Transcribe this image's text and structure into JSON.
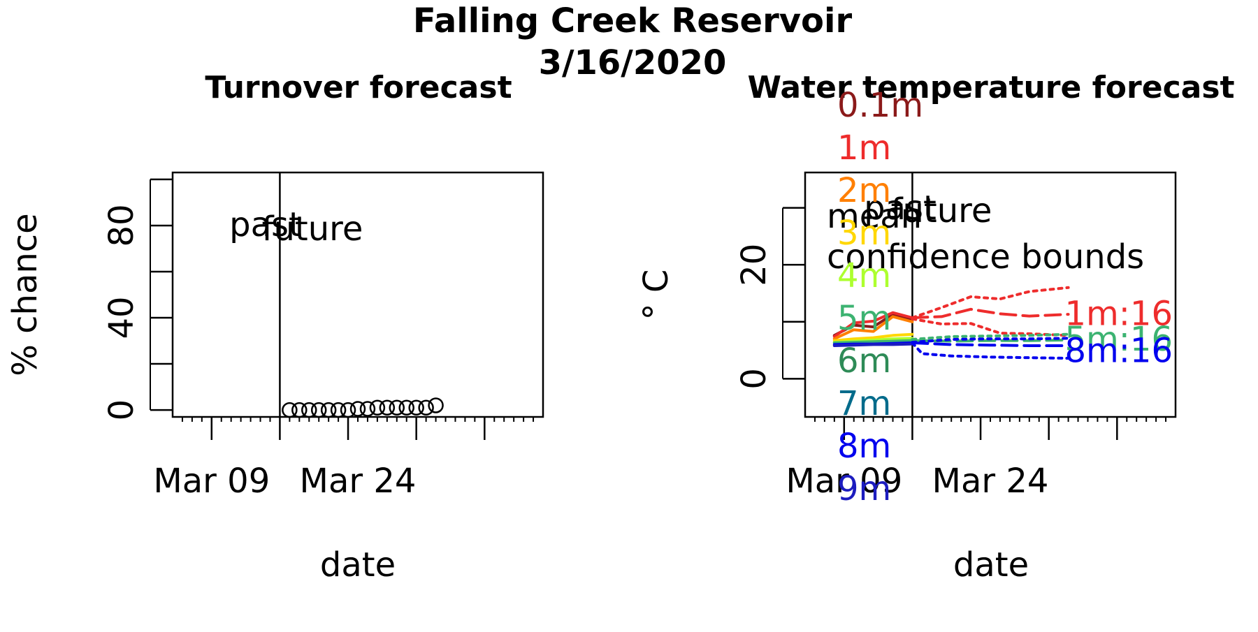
{
  "figure": {
    "title_line1": "Falling Creek Reservoir",
    "title_line2": "3/16/2020"
  },
  "chart_data": [
    {
      "type": "scatter",
      "title": "Turnover forecast",
      "xlabel": "date",
      "ylabel": "% chance",
      "x_tick_labels": [
        "Mar 09",
        "Mar 24"
      ],
      "y_tick_labels": [
        "0",
        "40",
        "80"
      ],
      "y_ticks_all": [
        0,
        20,
        40,
        60,
        80,
        100
      ],
      "xlim": [
        "2020-03-05",
        "2020-04-12"
      ],
      "ylim": [
        -3,
        103
      ],
      "forecast_start": "2020-03-16",
      "annotations": {
        "past": "past",
        "future": "future"
      },
      "points": [
        {
          "x": "2020-03-17",
          "y": 0
        },
        {
          "x": "2020-03-18",
          "y": 0
        },
        {
          "x": "2020-03-19",
          "y": 0
        },
        {
          "x": "2020-03-20",
          "y": 0
        },
        {
          "x": "2020-03-21",
          "y": 0
        },
        {
          "x": "2020-03-22",
          "y": 0
        },
        {
          "x": "2020-03-23",
          "y": 0
        },
        {
          "x": "2020-03-24",
          "y": 0.5
        },
        {
          "x": "2020-03-25",
          "y": 0.5
        },
        {
          "x": "2020-03-26",
          "y": 1
        },
        {
          "x": "2020-03-27",
          "y": 1
        },
        {
          "x": "2020-03-28",
          "y": 1
        },
        {
          "x": "2020-03-29",
          "y": 1
        },
        {
          "x": "2020-03-30",
          "y": 1
        },
        {
          "x": "2020-03-31",
          "y": 1
        },
        {
          "x": "2020-04-01",
          "y": 2
        }
      ]
    },
    {
      "type": "line",
      "title": "Water temperature forecast",
      "xlabel": "date",
      "ylabel": "° C",
      "x_tick_labels": [
        "Mar 09",
        "Mar 24"
      ],
      "y_tick_labels": [
        "0",
        "20"
      ],
      "y_ticks_all": [
        0,
        10,
        20,
        30
      ],
      "xlim": [
        "2020-03-05",
        "2020-04-12"
      ],
      "ylim": [
        -6.7,
        36.2
      ],
      "forecast_start": "2020-03-16",
      "annotations": {
        "past": "past",
        "future": "future"
      },
      "legend": {
        "depth_labels": [
          "0.1m",
          "1m",
          "2m",
          "3m",
          "4m",
          "5m",
          "6m",
          "7m",
          "8m",
          "9m"
        ],
        "depth_colors": [
          "#8B1A1A",
          "#EE2C2C",
          "#FF7F00",
          "#FFD700",
          "#ADFF2F",
          "#3CB371",
          "#2E8B57",
          "#006B8B",
          "#0000EE",
          "#1C1CBF"
        ],
        "mean_label": "mean",
        "bounds_label": "confidence bounds"
      },
      "end_labels": [
        {
          "text": "1m:16",
          "color": "#EE2C2C",
          "y": 11.5
        },
        {
          "text": "5m:16",
          "color": "#3CB371",
          "y": 7.0
        },
        {
          "text": "8m:16",
          "color": "#0000EE",
          "y": 5.0
        }
      ],
      "series": [
        {
          "name": "0.1m",
          "color": "#8B1A1A",
          "style": "solid",
          "x": [
            "2020-03-08",
            "2020-03-10",
            "2020-03-12",
            "2020-03-14",
            "2020-03-16"
          ],
          "y": [
            7.6,
            9.4,
            9.1,
            11.3,
            10.3
          ]
        },
        {
          "name": "1m",
          "color": "#EE2C2C",
          "style": "solid",
          "x": [
            "2020-03-08",
            "2020-03-10",
            "2020-03-12",
            "2020-03-14",
            "2020-03-16"
          ],
          "y": [
            7.4,
            9.8,
            10.1,
            11.6,
            10.7
          ]
        },
        {
          "name": "2m",
          "color": "#FF7F00",
          "style": "solid",
          "x": [
            "2020-03-08",
            "2020-03-10",
            "2020-03-12",
            "2020-03-14",
            "2020-03-16"
          ],
          "y": [
            7.0,
            8.6,
            8.3,
            10.9,
            10.0
          ]
        },
        {
          "name": "3m",
          "color": "#FFD700",
          "style": "solid",
          "x": [
            "2020-03-08",
            "2020-03-10",
            "2020-03-12",
            "2020-03-14",
            "2020-03-16"
          ],
          "y": [
            6.7,
            7.0,
            7.2,
            7.6,
            7.8
          ]
        },
        {
          "name": "4m",
          "color": "#ADFF2F",
          "style": "solid",
          "x": [
            "2020-03-08",
            "2020-03-10",
            "2020-03-12",
            "2020-03-14",
            "2020-03-16"
          ],
          "y": [
            6.4,
            6.6,
            6.8,
            7.0,
            7.1
          ]
        },
        {
          "name": "5m",
          "color": "#3CB371",
          "style": "solid",
          "x": [
            "2020-03-08",
            "2020-03-10",
            "2020-03-12",
            "2020-03-14",
            "2020-03-16"
          ],
          "y": [
            6.3,
            6.4,
            6.5,
            6.6,
            6.7
          ]
        },
        {
          "name": "8m",
          "color": "#0000EE",
          "style": "solid",
          "x": [
            "2020-03-08",
            "2020-03-10",
            "2020-03-12",
            "2020-03-14",
            "2020-03-16"
          ],
          "y": [
            6.0,
            6.1,
            6.1,
            6.2,
            6.3
          ]
        },
        {
          "name": "9m",
          "color": "#1C1CBF",
          "style": "solid",
          "x": [
            "2020-03-08",
            "2020-03-10",
            "2020-03-12",
            "2020-03-14",
            "2020-03-16"
          ],
          "y": [
            5.8,
            5.9,
            6.0,
            6.0,
            6.1
          ]
        },
        {
          "name": "1m:16",
          "color": "#EE2C2C",
          "style": "dashed",
          "x": [
            "2020-03-16",
            "2020-03-19",
            "2020-03-22",
            "2020-03-25",
            "2020-03-28",
            "2020-04-01"
          ],
          "y": [
            10.7,
            10.9,
            12.2,
            11.4,
            11.0,
            11.3
          ]
        },
        {
          "name": "1m:16",
          "color": "#EE2C2C",
          "style": "dotted",
          "x": [
            "2020-03-16",
            "2020-03-19",
            "2020-03-22",
            "2020-03-25",
            "2020-03-28",
            "2020-04-01"
          ],
          "y": [
            10.7,
            12.5,
            14.4,
            14.0,
            15.3,
            16.0
          ]
        },
        {
          "name": "1m:16",
          "color": "#EE2C2C",
          "style": "dotted",
          "x": [
            "2020-03-16",
            "2020-03-19",
            "2020-03-22",
            "2020-03-25",
            "2020-03-28",
            "2020-04-01"
          ],
          "y": [
            10.5,
            9.6,
            9.7,
            8.0,
            7.9,
            7.6
          ]
        },
        {
          "name": "5m:16",
          "color": "#3CB371",
          "style": "dashed",
          "x": [
            "2020-03-16",
            "2020-03-20",
            "2020-03-24",
            "2020-03-28",
            "2020-04-01"
          ],
          "y": [
            6.7,
            6.6,
            6.7,
            6.7,
            6.8
          ]
        },
        {
          "name": "5m:16",
          "color": "#3CB371",
          "style": "dotted",
          "x": [
            "2020-03-16",
            "2020-03-20",
            "2020-03-24",
            "2020-03-28",
            "2020-04-01"
          ],
          "y": [
            6.9,
            7.4,
            7.5,
            7.6,
            7.8
          ]
        },
        {
          "name": "8m:16",
          "color": "#0000EE",
          "style": "dashed",
          "x": [
            "2020-03-16",
            "2020-03-20",
            "2020-03-24",
            "2020-03-28",
            "2020-04-01"
          ],
          "y": [
            6.3,
            6.0,
            5.9,
            5.8,
            5.8
          ]
        },
        {
          "name": "8m:16",
          "color": "#0000EE",
          "style": "dotted",
          "x": [
            "2020-03-16",
            "2020-03-17",
            "2020-03-20",
            "2020-03-24",
            "2020-03-28",
            "2020-04-01"
          ],
          "y": [
            6.3,
            4.4,
            4.0,
            3.8,
            3.7,
            3.6
          ]
        },
        {
          "name": "8m:16",
          "color": "#0000EE",
          "style": "dotted",
          "x": [
            "2020-03-16",
            "2020-03-20",
            "2020-03-24",
            "2020-03-28",
            "2020-04-01"
          ],
          "y": [
            6.4,
            6.9,
            7.0,
            7.0,
            7.1
          ]
        }
      ]
    }
  ]
}
